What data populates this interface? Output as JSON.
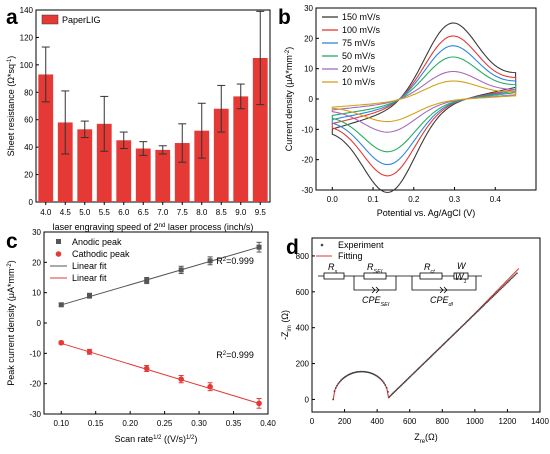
{
  "chart_data": [
    {
      "panel": "a",
      "type": "bar",
      "legend": [
        "PaperLIG"
      ],
      "color": "#e53935",
      "categories": [
        "4.0",
        "4.5",
        "5.0",
        "5.5",
        "6.0",
        "6.5",
        "7.0",
        "7.5",
        "8.0",
        "8.5",
        "9.0",
        "9.5"
      ],
      "series": [
        {
          "name": "PaperLIG",
          "values": [
            93,
            58,
            53,
            57,
            45,
            39,
            38,
            43,
            52,
            68,
            77,
            105
          ],
          "errors": [
            20,
            23,
            6,
            20,
            6,
            5,
            3,
            14,
            20,
            17,
            9,
            34
          ]
        }
      ],
      "yticks": [
        "0",
        "20",
        "40",
        "60",
        "80",
        "100",
        "120",
        "140"
      ],
      "ylim": [
        0,
        140
      ],
      "ylabel": "Sheet resistance (Ω*sq",
      "ylabel_sup": "-1",
      "ylabel_end": ")",
      "xlabel_parts": [
        "laser engraving speed of 2",
        "nd",
        " laser process (inch/s)"
      ]
    },
    {
      "panel": "b",
      "type": "line",
      "x_range": [
        0.0,
        0.45
      ],
      "xticks": [
        "0.0",
        "0.1",
        "0.2",
        "0.3",
        "0.4"
      ],
      "yticks": [
        "-30",
        "-20",
        "-10",
        "0",
        "10",
        "20",
        "30"
      ],
      "ylim": [
        -30,
        30
      ],
      "xlabel": "Potential vs. Ag/AgCl (V)",
      "ylabel": "Current density (μA*mm",
      "ylabel_sup": "-2",
      "ylabel_end": ")",
      "series": [
        {
          "name": "150 mV/s",
          "color": "#3a3a3a",
          "ia": 23.5,
          "ic": 25.5,
          "cap": 11
        },
        {
          "name": "100 mV/s",
          "color": "#e53935",
          "ia": 19.5,
          "ic": 21,
          "cap": 9
        },
        {
          "name": "75 mV/s",
          "color": "#2e86de",
          "ia": 16.5,
          "ic": 18,
          "cap": 7.5
        },
        {
          "name": "50 mV/s",
          "color": "#27ae60",
          "ia": 13,
          "ic": 14.5,
          "cap": 6
        },
        {
          "name": "20 mV/s",
          "color": "#a569bd",
          "ia": 8.5,
          "ic": 9,
          "cap": 4
        },
        {
          "name": "10 mV/s",
          "color": "#d4a017",
          "ia": 5.5,
          "ic": 6,
          "cap": 3
        }
      ]
    },
    {
      "panel": "c",
      "type": "scatter",
      "x": [
        0.1,
        0.141,
        0.224,
        0.274,
        0.316,
        0.387
      ],
      "series": [
        {
          "name": "Anodic peak",
          "color": "#555555",
          "values": [
            6,
            9,
            14,
            17.5,
            20.5,
            25
          ],
          "errors": [
            0.5,
            0.8,
            1,
            1.2,
            1.3,
            1.6
          ]
        },
        {
          "name": "Cathodic peak",
          "color": "#e53935",
          "values": [
            -6.5,
            -9.5,
            -15,
            -18.5,
            -21,
            -26.5
          ],
          "errors": [
            0.5,
            0.8,
            1,
            1.2,
            1.3,
            1.6
          ]
        }
      ],
      "fits": [
        {
          "name": "Linear fit",
          "color": "#555555",
          "slope": 66.5,
          "intercept": -0.7,
          "r2": "R",
          "r2_tail": "=0.999"
        },
        {
          "name": "Linear fit",
          "color": "#e53935",
          "slope": -69,
          "intercept": 0.2,
          "r2": "R",
          "r2_tail": "=0.999"
        }
      ],
      "xlim": [
        0.075,
        0.4
      ],
      "ylim": [
        -30,
        30
      ],
      "xticks": [
        "0.10",
        "0.15",
        "0.20",
        "0.25",
        "0.30",
        "0.35",
        "0.40"
      ],
      "yticks": [
        "-30",
        "-20",
        "-10",
        "0",
        "10",
        "20",
        "30"
      ],
      "xlabel": "Scan rate",
      "xlabel_sup": "1/2",
      "xlabel_mid": " ((V/s)",
      "xlabel_sup2": "1/2",
      "xlabel_end": ")",
      "ylabel": "Peak current density (μA*mm",
      "ylabel_sup": "-2",
      "ylabel_end": ")"
    },
    {
      "panel": "d",
      "type": "line",
      "series": [
        {
          "name": "Experiment",
          "color": "#444444",
          "style": "dots"
        },
        {
          "name": "Fitting",
          "color": "#e53935",
          "style": "line"
        }
      ],
      "xlim": [
        0,
        1400
      ],
      "ylim": [
        0,
        900
      ],
      "xticks": [
        "0",
        "200",
        "400",
        "600",
        "800",
        "1000",
        "1200",
        "1400"
      ],
      "yticks": [
        "0",
        "200",
        "400",
        "600",
        "800"
      ],
      "xlabel": "Z",
      "xlabel_sub": "re",
      "xlabel_end": "(Ω)",
      "ylabel": "-Z",
      "ylabel_sub": "im",
      "ylabel_end": " (Ω)",
      "circuit_labels": [
        "R",
        "s",
        "R",
        "SEI",
        "R",
        "ct",
        "W",
        "W",
        "1",
        "CPE",
        "SEI",
        "CPE",
        "dl"
      ]
    }
  ],
  "panel_letters": [
    "a",
    "b",
    "c",
    "d"
  ]
}
